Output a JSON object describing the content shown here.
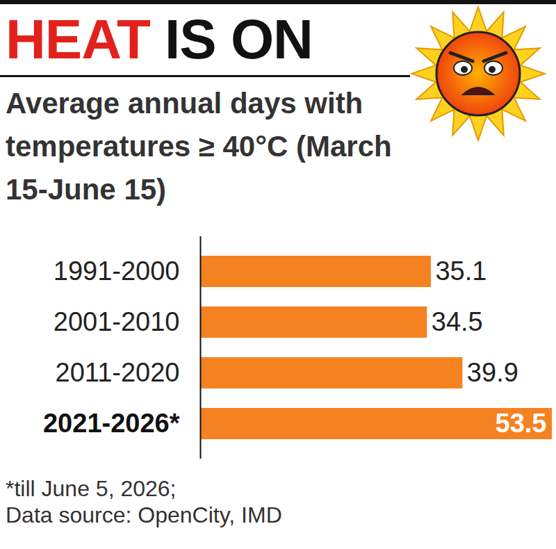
{
  "chart_data": {
    "type": "bar",
    "orientation": "horizontal",
    "title": "HEAT IS ON",
    "subtitle": "Average annual days with temperatures ≥ 40°C (March 15-June 15)",
    "categories": [
      "1991-2000",
      "2001-2010",
      "2011-2020",
      "2021-2026*"
    ],
    "values": [
      35.1,
      34.5,
      39.9,
      53.5
    ],
    "color": "#f58220",
    "xlim": [
      0,
      53.5
    ],
    "xticks": [],
    "data_labels": true,
    "tick_labels": "y",
    "grid": false,
    "footnote": "*till June 5, 2026;",
    "source": "Data source: OpenCity, IMD"
  }
}
